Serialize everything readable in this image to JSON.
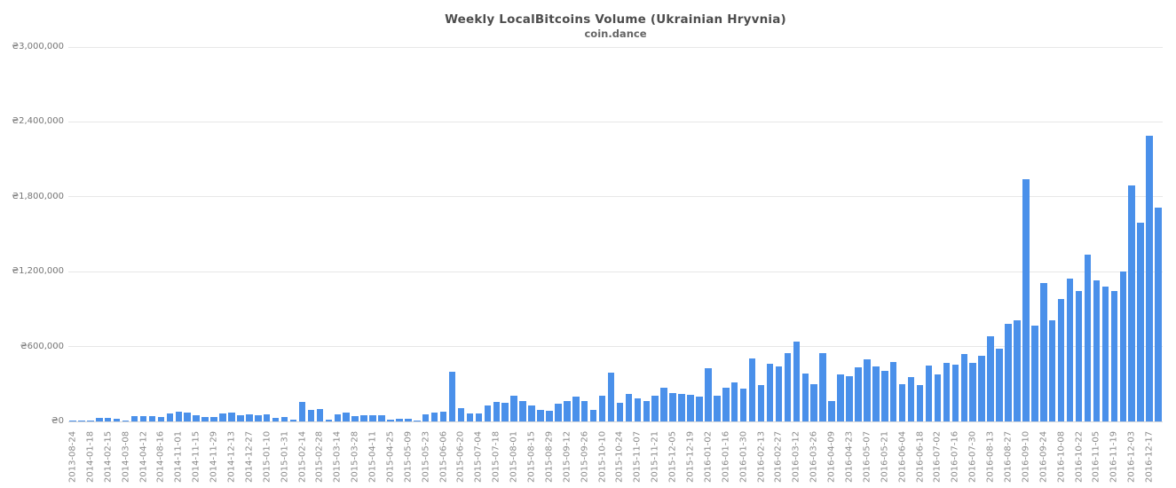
{
  "chart_data": {
    "type": "bar",
    "title": "Weekly LocalBitcoins Volume (Ukrainian Hryvnia)",
    "subtitle": "coin.dance",
    "currency_symbol": "₴",
    "ylim": [
      0,
      3000000
    ],
    "y_tick_step": 600000,
    "y_ticks": [
      "₴0",
      "₴600,000",
      "₴1,200,000",
      "₴1,800,000",
      "₴2,400,000",
      "₴3,000,000"
    ],
    "grid": true,
    "legend": "none",
    "x_label_every": 2,
    "x_labels": [
      "2013-08-24",
      "2014-01-18",
      "2014-02-15",
      "2014-03-08",
      "2014-04-12",
      "2014-08-16",
      "2014-11-01",
      "2014-11-15",
      "2014-11-29",
      "2014-12-13",
      "2014-12-27",
      "2015-01-10",
      "2015-01-31",
      "2015-02-14",
      "2015-02-28",
      "2015-03-14",
      "2015-03-28",
      "2015-04-11",
      "2015-04-25",
      "2015-05-09",
      "2015-05-23",
      "2015-06-06",
      "2015-06-20",
      "2015-07-04",
      "2015-07-18",
      "2015-08-01",
      "2015-08-15",
      "2015-08-29",
      "2015-09-12",
      "2015-09-26",
      "2015-10-10",
      "2015-10-24",
      "2015-11-07",
      "2015-11-21",
      "2015-12-05",
      "2015-12-19",
      "2016-01-02",
      "2016-01-16",
      "2016-01-30",
      "2016-02-13",
      "2016-02-27",
      "2016-03-12",
      "2016-03-26",
      "2016-04-09",
      "2016-04-23",
      "2016-05-07",
      "2016-05-21",
      "2016-06-04",
      "2016-06-18",
      "2016-07-02",
      "2016-07-16",
      "2016-07-30",
      "2016-08-13",
      "2016-08-27",
      "2016-09-10",
      "2016-09-24",
      "2016-10-08",
      "2016-10-22",
      "2016-11-05",
      "2016-11-19",
      "2016-12-03",
      "2016-12-17"
    ],
    "values": [
      5000,
      2000,
      4000,
      28000,
      28000,
      21000,
      6000,
      40000,
      40000,
      45000,
      33000,
      62000,
      76000,
      69000,
      50000,
      33000,
      38000,
      62000,
      71000,
      52000,
      55000,
      48000,
      59000,
      26000,
      33000,
      13000,
      155000,
      95000,
      100000,
      13000,
      55000,
      69000,
      42000,
      47000,
      47000,
      50000,
      17000,
      24000,
      19000,
      7000,
      59000,
      73000,
      75000,
      400000,
      105000,
      65000,
      63000,
      128000,
      154000,
      152000,
      209000,
      166000,
      130000,
      95000,
      85000,
      142000,
      161000,
      199000,
      161000,
      95000,
      209000,
      391000,
      147000,
      220000,
      185000,
      164000,
      206000,
      273000,
      230000,
      221000,
      211000,
      197000,
      427000,
      206000,
      268000,
      313000,
      261000,
      505000,
      290000,
      463000,
      443000,
      546000,
      638000,
      384000,
      301000,
      550000,
      166000,
      377000,
      365000,
      436000,
      500000,
      444000,
      408000,
      475000,
      301000,
      354000,
      294000,
      447000,
      374000,
      472000,
      453000,
      541000,
      468000,
      527000,
      686000,
      580000,
      783000,
      811000,
      1938000,
      766000,
      1108000,
      813000,
      980000,
      1148000,
      1044000,
      1340000,
      1132000,
      1084000,
      1044000,
      1203000,
      1893000,
      1589000,
      2289000,
      1715000
    ]
  },
  "colors": {
    "bar": "#4a90ea",
    "grid": "#e7e7e7",
    "zero_line": "#d9d9d9",
    "title_text": "#4d4d4d",
    "subtitle_text": "#666666",
    "y_tick_text": "#757575",
    "x_tick_text": "#8a8a8a",
    "background": "#ffffff"
  }
}
